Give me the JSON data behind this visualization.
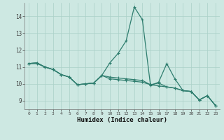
{
  "xlabel": "Humidex (Indice chaleur)",
  "x": [
    0,
    1,
    2,
    3,
    4,
    5,
    6,
    7,
    8,
    9,
    10,
    11,
    12,
    13,
    14,
    15,
    16,
    17,
    18,
    19,
    20,
    21,
    22,
    23
  ],
  "line1": [
    11.2,
    11.25,
    11.0,
    10.85,
    10.55,
    10.4,
    9.95,
    10.0,
    10.05,
    10.5,
    11.25,
    11.8,
    12.55,
    14.55,
    13.8,
    9.9,
    10.1,
    11.2,
    10.3,
    9.6,
    9.55,
    9.05,
    9.3,
    8.72
  ],
  "line2": [
    11.2,
    11.25,
    11.0,
    10.85,
    10.55,
    10.4,
    9.95,
    10.0,
    10.05,
    10.5,
    10.3,
    10.25,
    10.2,
    10.15,
    10.1,
    9.95,
    9.88,
    9.82,
    9.75,
    9.6,
    9.55,
    9.05,
    9.3,
    8.72
  ],
  "line3": [
    11.2,
    11.2,
    11.0,
    10.85,
    10.55,
    10.4,
    9.95,
    10.0,
    10.05,
    10.5,
    10.4,
    10.35,
    10.3,
    10.25,
    10.2,
    9.95,
    10.05,
    9.82,
    9.75,
    9.6,
    9.55,
    9.05,
    9.3,
    8.72
  ],
  "line_color": "#2e7d6e",
  "bg_color": "#cde8e2",
  "grid_color": "#aad0c8",
  "ylim": [
    8.5,
    14.8
  ],
  "yticks": [
    9,
    10,
    11,
    12,
    13,
    14
  ],
  "xlim": [
    -0.5,
    23.5
  ]
}
